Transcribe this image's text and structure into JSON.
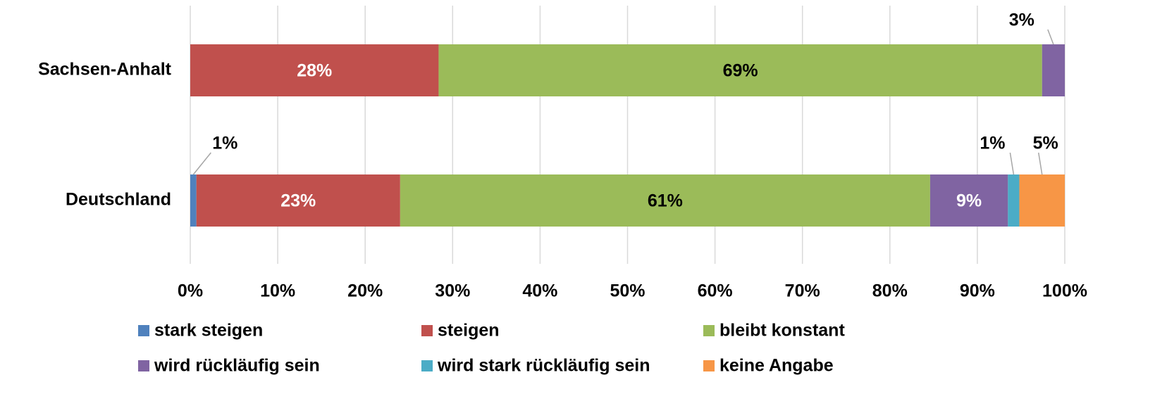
{
  "chart_data": {
    "type": "stacked-barh",
    "categories": [
      "Sachsen-Anhalt",
      "Deutschland"
    ],
    "series": [
      {
        "name": "stark steigen",
        "color": "#4f81bd",
        "values": [
          0,
          0.7
        ],
        "value_labels": [
          null,
          "1%"
        ]
      },
      {
        "name": "steigen",
        "color": "#c0504d",
        "values": [
          28.4,
          23.3
        ],
        "value_labels": [
          "28%",
          "23%"
        ]
      },
      {
        "name": "bleibt konstant",
        "color": "#9bbb59",
        "values": [
          69.0,
          60.6
        ],
        "value_labels": [
          "69%",
          "61%"
        ]
      },
      {
        "name": "wird rückläufig sein",
        "color": "#8064a2",
        "values": [
          2.6,
          8.9
        ],
        "value_labels": [
          "3%",
          "9%"
        ]
      },
      {
        "name": "wird stark rückläufig sein",
        "color": "#4bacc6",
        "values": [
          0,
          1.3
        ],
        "value_labels": [
          null,
          "1%"
        ]
      },
      {
        "name": "keine Angabe",
        "color": "#f79646",
        "values": [
          0,
          5.2
        ],
        "value_labels": [
          null,
          "5%"
        ]
      }
    ],
    "xlim": [
      0,
      100
    ],
    "xticks": [
      {
        "value": 0,
        "label": "0%"
      },
      {
        "value": 10,
        "label": "10%"
      },
      {
        "value": 20,
        "label": "20%"
      },
      {
        "value": 30,
        "label": "30%"
      },
      {
        "value": 40,
        "label": "40%"
      },
      {
        "value": 50,
        "label": "50%"
      },
      {
        "value": 60,
        "label": "60%"
      },
      {
        "value": 70,
        "label": "70%"
      },
      {
        "value": 80,
        "label": "80%"
      },
      {
        "value": 90,
        "label": "90%"
      },
      {
        "value": 100,
        "label": "100%"
      }
    ],
    "grid": true,
    "legend": "bottom"
  }
}
